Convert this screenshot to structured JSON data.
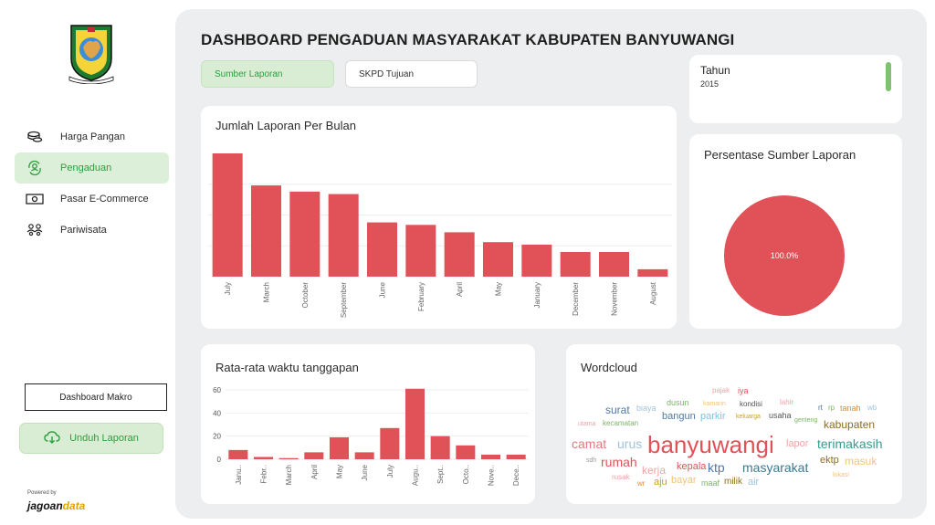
{
  "app": {
    "title": "DASHBOARD PENGADUAN MASYARAKAT KABUPATEN BANYUWANGI"
  },
  "sidebar": {
    "items": [
      {
        "label": "Harga Pangan",
        "icon": "coins-icon",
        "active": false
      },
      {
        "label": "Pengaduan",
        "icon": "person-cycle-icon",
        "active": true
      },
      {
        "label": "Pasar E-Commerce",
        "icon": "money-icon",
        "active": false
      },
      {
        "label": "Pariwisata",
        "icon": "group-icon",
        "active": false
      }
    ],
    "makro_label": "Dashboard Makro",
    "unduh_label": "Unduh Laporan",
    "powered_label": "Powered by",
    "brand_main": "jagoan",
    "brand_accent": "data"
  },
  "tabs": [
    {
      "label": "Sumber Laporan",
      "active": true
    },
    {
      "label": "SKPD Tujuan",
      "active": false
    }
  ],
  "filter": {
    "label": "Tahun",
    "value": "2015"
  },
  "cards": {
    "bulan_title": "Jumlah Laporan Per Bulan",
    "persen_title": "Persentase Sumber Laporan",
    "rata_title": "Rata-rata waktu tanggapan",
    "word_title": "Wordcloud"
  },
  "colors": {
    "bar": "#e05258",
    "accent_green": "#2e9e3e",
    "wc_main": "#e05258"
  },
  "chart_data": [
    {
      "type": "bar",
      "title": "Jumlah Laporan Per Bulan",
      "categories": [
        "July",
        "March",
        "October",
        "September",
        "June",
        "February",
        "April",
        "May",
        "January",
        "December",
        "November",
        "August"
      ],
      "values": [
        100,
        74,
        69,
        67,
        44,
        42,
        36,
        28,
        26,
        20,
        20,
        6
      ],
      "ylim": [
        0,
        100
      ],
      "grid": true
    },
    {
      "type": "pie",
      "title": "Persentase Sumber Laporan",
      "slices": [
        {
          "label": "100.0%",
          "value": 100
        }
      ]
    },
    {
      "type": "bar",
      "title": "Rata-rata waktu tanggapan",
      "categories": [
        "Janu..",
        "Febr..",
        "March",
        "April",
        "May",
        "June",
        "July",
        "Augu..",
        "Sept..",
        "Octo..",
        "Nove..",
        "Dece.."
      ],
      "values": [
        8,
        2,
        1,
        6,
        19,
        6,
        27,
        61,
        20,
        12,
        4,
        4
      ],
      "yticks": [
        "60",
        "40",
        "20",
        "0"
      ],
      "ylim": [
        0,
        65
      ],
      "grid": true
    }
  ],
  "wordcloud": [
    {
      "t": "pajak",
      "c": "#f0a3a6",
      "s": 8
    },
    {
      "t": "iya",
      "c": "#e05258",
      "s": 9
    },
    {
      "t": "surat",
      "c": "#4e79a7",
      "s": 12
    },
    {
      "t": "biaya",
      "c": "#a0c4e0",
      "s": 9
    },
    {
      "t": "dusun",
      "c": "#7cb46a",
      "s": 9
    },
    {
      "t": "kamarin",
      "c": "#f1c47a",
      "s": 7
    },
    {
      "t": "kondisi",
      "c": "#555555",
      "s": 8
    },
    {
      "t": "lahir",
      "c": "#f0a3a6",
      "s": 8
    },
    {
      "t": "rt",
      "c": "#4e79a7",
      "s": 8
    },
    {
      "t": "rp",
      "c": "#7cb46a",
      "s": 8
    },
    {
      "t": "tanah",
      "c": "#e08a3a",
      "s": 9
    },
    {
      "t": "wb",
      "c": "#a0c4e0",
      "s": 8
    },
    {
      "t": "bangun",
      "c": "#4e79a7",
      "s": 11
    },
    {
      "t": "parkir",
      "c": "#7cc4e0",
      "s": 11
    },
    {
      "t": "keluarga",
      "c": "#c9a21a",
      "s": 7
    },
    {
      "t": "usaha",
      "c": "#555555",
      "s": 9
    },
    {
      "t": "utama",
      "c": "#f0a3a6",
      "s": 7
    },
    {
      "t": "kecamatan",
      "c": "#7cb46a",
      "s": 8
    },
    {
      "t": "genteng",
      "c": "#7cb46a",
      "s": 7
    },
    {
      "t": "kabupaten",
      "c": "#8c6d1f",
      "s": 12
    },
    {
      "t": "camat",
      "c": "#e07a80",
      "s": 14
    },
    {
      "t": "urus",
      "c": "#a0c4e0",
      "s": 14
    },
    {
      "t": "banyuwangi",
      "c": "#e05258",
      "s": 26
    },
    {
      "t": "lapor",
      "c": "#f0a3a6",
      "s": 11
    },
    {
      "t": "terimakasih",
      "c": "#3a9a8f",
      "s": 14
    },
    {
      "t": "sdh",
      "c": "#999999",
      "s": 7
    },
    {
      "t": "rumah",
      "c": "#e05258",
      "s": 14
    },
    {
      "t": "kerja",
      "c": "#f0a3a6",
      "s": 12
    },
    {
      "t": "kepala",
      "c": "#e05258",
      "s": 11
    },
    {
      "t": "ktp",
      "c": "#4e79a7",
      "s": 14
    },
    {
      "t": "masyarakat",
      "c": "#3a7a8f",
      "s": 14
    },
    {
      "t": "ektp",
      "c": "#8c6d1f",
      "s": 11
    },
    {
      "t": "masuk",
      "c": "#f1c47a",
      "s": 12
    },
    {
      "t": "rusak",
      "c": "#f0a3a6",
      "s": 8
    },
    {
      "t": "wr",
      "c": "#e08a3a",
      "s": 8
    },
    {
      "t": "aju",
      "c": "#c9a21a",
      "s": 11
    },
    {
      "t": "bayar",
      "c": "#f1c47a",
      "s": 11
    },
    {
      "t": "maaf",
      "c": "#7cb46a",
      "s": 9
    },
    {
      "t": "milik",
      "c": "#8c6d1f",
      "s": 10
    },
    {
      "t": "air",
      "c": "#a0c4e0",
      "s": 11
    },
    {
      "t": "lokasi",
      "c": "#f1c47a",
      "s": 7
    }
  ]
}
